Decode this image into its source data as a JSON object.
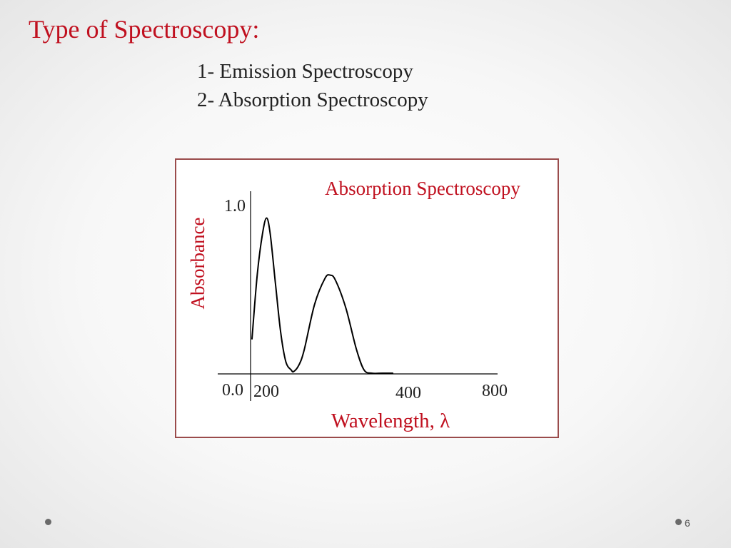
{
  "slide": {
    "title": "Type of Spectroscopy:",
    "list": [
      "1- Emission Spectroscopy",
      "2- Absorption Spectroscopy"
    ],
    "page_number": "6"
  },
  "colors": {
    "title": "#c0101f",
    "text": "#222222",
    "frame": "#9a4b4b"
  },
  "chart_data": {
    "type": "line",
    "title": "Absorption Spectroscopy",
    "xlabel": "Wavelength, λ",
    "ylabel": "Absorbance",
    "x_tick_labels": [
      "200",
      "400",
      "800"
    ],
    "y_tick_labels": [
      "1.0",
      "0.0"
    ],
    "ylim": [
      0,
      1
    ],
    "grid": false,
    "series": [
      {
        "values_description_free": true,
        "points": [
          [
            0.0,
            0.21
          ],
          [
            0.1,
            0.6
          ],
          [
            0.2,
            0.85
          ],
          [
            0.28,
            0.95
          ],
          [
            0.35,
            0.85
          ],
          [
            0.45,
            0.55
          ],
          [
            0.55,
            0.25
          ],
          [
            0.65,
            0.07
          ],
          [
            0.75,
            0.02
          ],
          [
            0.8,
            0.01
          ],
          [
            0.9,
            0.05
          ],
          [
            1.0,
            0.14
          ],
          [
            1.2,
            0.42
          ],
          [
            1.4,
            0.58
          ],
          [
            1.5,
            0.6
          ],
          [
            1.6,
            0.57
          ],
          [
            1.8,
            0.4
          ],
          [
            2.0,
            0.15
          ],
          [
            2.15,
            0.02
          ],
          [
            2.3,
            0.0
          ],
          [
            2.5,
            0.0
          ],
          [
            2.7,
            0.0
          ]
        ]
      }
    ]
  }
}
